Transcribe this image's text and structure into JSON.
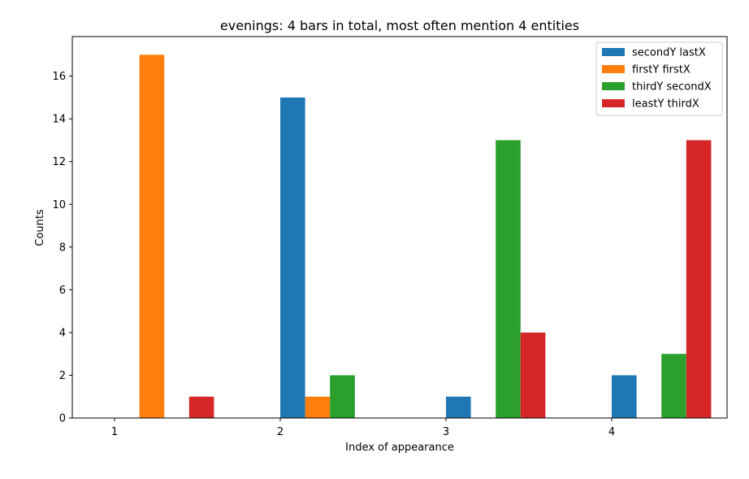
{
  "chart_data": {
    "type": "bar",
    "title": "evenings: 4 bars in total, most often mention  4 entities",
    "xlabel": "Index of appearance",
    "ylabel": "Counts",
    "categories": [
      "1",
      "2",
      "3",
      "4"
    ],
    "ylim": [
      0,
      17.85
    ],
    "yticks": [
      0,
      2,
      4,
      6,
      8,
      10,
      12,
      14,
      16
    ],
    "grid": false,
    "legend_position": "top-right",
    "series": [
      {
        "name": "secondY lastX",
        "color": "#1f77b4",
        "values": [
          0,
          15,
          1,
          2
        ]
      },
      {
        "name": "firstY firstX",
        "color": "#ff7f0e",
        "values": [
          17,
          1,
          0,
          0
        ]
      },
      {
        "name": "thirdY secondX",
        "color": "#2ca02c",
        "values": [
          0,
          2,
          13,
          3
        ]
      },
      {
        "name": "leastY thirdX",
        "color": "#d62728",
        "values": [
          1,
          0,
          4,
          13
        ]
      }
    ]
  }
}
